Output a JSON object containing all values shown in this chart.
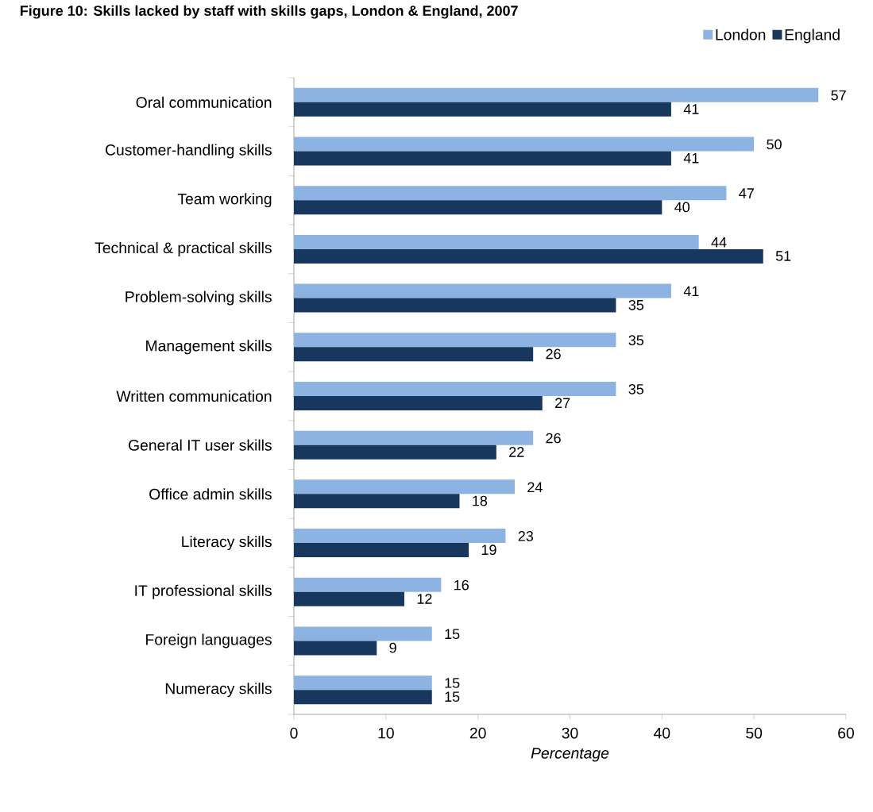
{
  "chart_data": {
    "type": "bar",
    "orientation": "horizontal",
    "title": "Figure 10: Skills lacked by staff with skills gaps, London & England, 2007",
    "categories": [
      "Oral communication",
      "Customer-handling skills",
      "Team working",
      "Technical & practical skills",
      "Problem-solving skills",
      "Management skills",
      "Written communication",
      "General IT user skills",
      "Office admin skills",
      "Literacy skills",
      "IT professional skills",
      "Foreign languages",
      "Numeracy skills"
    ],
    "series": [
      {
        "name": "London",
        "color": "#8db3e2",
        "values": [
          57,
          50,
          47,
          44,
          41,
          35,
          35,
          26,
          24,
          23,
          16,
          15,
          15
        ]
      },
      {
        "name": "England",
        "color": "#17375e",
        "values": [
          41,
          41,
          40,
          51,
          35,
          26,
          27,
          22,
          18,
          19,
          12,
          9,
          15
        ]
      }
    ],
    "xlabel": "Percentage",
    "xlim": [
      0,
      60
    ],
    "xticks": [
      0,
      10,
      20,
      30,
      40,
      50,
      60
    ],
    "data_labels": true,
    "legend": "top right",
    "grid": false
  }
}
